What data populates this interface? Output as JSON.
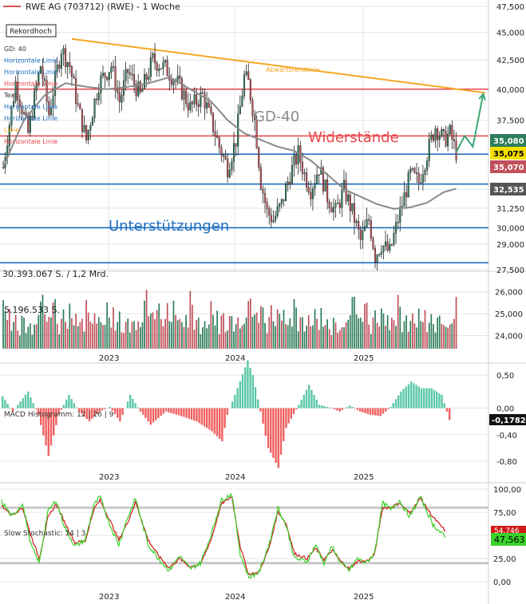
{
  "header": {
    "title": "RWE AG (703712) (RWE) - 1 Woche",
    "record_badge": "Rekordhoch",
    "legend_line_color": "#e05050"
  },
  "colors": {
    "bull": "#2e7d5b",
    "bear": "#c0505a",
    "trend": "#f5a623",
    "support": "#1f6fc0",
    "resistance": "#e8474c",
    "ma": "#8a8a8a",
    "forecast": "#3aa872",
    "macd_pos": "#5cc8a8",
    "macd_neg": "#f06060",
    "stoch_fast": "#3bd12b",
    "stoch_slow": "#d11a1a",
    "grid": "#e5e5e5"
  },
  "overlay_list": [
    {
      "text": "GD: 40",
      "color": "#333333"
    },
    {
      "text": "Horizontale Linie",
      "color": "#1f6fc0"
    },
    {
      "text": "Horizontale Linie",
      "color": "#1f6fc0"
    },
    {
      "text": "Horizontale Linie",
      "color": "#e8474c"
    },
    {
      "text": "Text",
      "color": "#333333"
    },
    {
      "text": "Horizontale Linie",
      "color": "#1f6fc0"
    },
    {
      "text": "Horizontale Linie",
      "color": "#1f6fc0"
    },
    {
      "text": "Linie",
      "color": "#f5a623"
    },
    {
      "text": "Horizontale Linie",
      "color": "#e8474c"
    }
  ],
  "annotations": {
    "trend_label": "Abwärtsrendlinie",
    "ma_label": "GD-40",
    "resistance_label": "Widerstände",
    "support_label": "Unterstützungen"
  },
  "price_panel": {
    "yticks": [
      "47,500",
      "45,000",
      "42,500",
      "40,000",
      "37,500",
      "35,000",
      "32,500",
      "31,250",
      "30,000",
      "29,000",
      "27,500"
    ],
    "ytick_values": [
      47.5,
      45,
      42.5,
      40,
      37.5,
      35,
      32.5,
      31.25,
      30,
      29,
      27.5
    ],
    "price_tags": [
      {
        "label": "35,080",
        "value": 35.08,
        "bg": "#2e7d5b",
        "fg": "#ffffff"
      },
      {
        "label": "35,075",
        "value": 35.075,
        "bg": "#f5e000",
        "fg": "#000000"
      },
      {
        "label": "35,070",
        "value": 35.07,
        "bg": "#c0505a",
        "fg": "#ffffff"
      },
      {
        "label": "32,535",
        "value": 32.535,
        "bg": "#555555",
        "fg": "#ffffff"
      }
    ]
  },
  "volume_panel": {
    "label_total": "30.393.067 S. / 1,2 Mrd.",
    "label_last": "5.196.533 S.",
    "yticks": [
      "26,000",
      "25,000",
      "24,000"
    ]
  },
  "macd_panel": {
    "label": "MACD Histogramm: 12 | 26 | 9",
    "yticks": [
      "0,50",
      "0,00",
      "-0,40",
      "-0,80"
    ],
    "ytick_values": [
      0.5,
      0,
      -0.4,
      -0.8
    ],
    "value_tag": "-0,17827"
  },
  "stoch_panel": {
    "label": "Slow Stochastic: 14 | 3",
    "yticks": [
      "100,00",
      "75,00",
      "50,00",
      "25,00",
      "0,00"
    ],
    "ytick_values": [
      100,
      75,
      50,
      25,
      0
    ],
    "tag_top": "54,746",
    "tag_bottom": "47,563"
  },
  "x_axis": {
    "labels": [
      "2023",
      "2024",
      "2025"
    ]
  },
  "chart_data": [
    {
      "type": "candlestick",
      "title": "RWE AG (703712) (RWE) - 1 Woche",
      "y_scale": "log",
      "ylim": [
        27.5,
        47.5
      ],
      "x_labels": [
        "2023",
        "2024",
        "2025"
      ],
      "close_path": [
        [
          0,
          34.0
        ],
        [
          6,
          40.5
        ],
        [
          12,
          36.5
        ],
        [
          18,
          42.0
        ],
        [
          22,
          38.0
        ],
        [
          28,
          43.5
        ],
        [
          32,
          42.0
        ],
        [
          36,
          38.5
        ],
        [
          40,
          36.0
        ],
        [
          46,
          40.5
        ],
        [
          52,
          42.0
        ],
        [
          56,
          39.0
        ],
        [
          60,
          41.5
        ],
        [
          66,
          39.5
        ],
        [
          72,
          42.5
        ],
        [
          78,
          41.8
        ],
        [
          84,
          40.5
        ],
        [
          90,
          38.5
        ],
        [
          96,
          39.5
        ],
        [
          100,
          37.5
        ],
        [
          104,
          35.5
        ],
        [
          108,
          34.0
        ],
        [
          112,
          36.0
        ],
        [
          116,
          41.0
        ],
        [
          118,
          40.5
        ],
        [
          121,
          37.5
        ],
        [
          124,
          33.0
        ],
        [
          127,
          31.0
        ],
        [
          130,
          30.5
        ],
        [
          134,
          31.5
        ],
        [
          138,
          33.5
        ],
        [
          142,
          35.0
        ],
        [
          145,
          33.5
        ],
        [
          148,
          32.5
        ],
        [
          152,
          34.0
        ],
        [
          156,
          32.0
        ],
        [
          160,
          31.0
        ],
        [
          164,
          32.5
        ],
        [
          168,
          31.0
        ],
        [
          172,
          29.2
        ],
        [
          176,
          30.5
        ],
        [
          179,
          28.3
        ],
        [
          182,
          29.0
        ],
        [
          186,
          28.5
        ],
        [
          190,
          30.5
        ],
        [
          193,
          32.0
        ],
        [
          196,
          33.5
        ],
        [
          200,
          33.0
        ],
        [
          204,
          35.0
        ],
        [
          208,
          37.0
        ],
        [
          212,
          36.0
        ],
        [
          215,
          36.5
        ],
        [
          218,
          35.08
        ]
      ],
      "ma40_path": [
        [
          0,
          34.0
        ],
        [
          10,
          37.5
        ],
        [
          20,
          39.5
        ],
        [
          30,
          40.5
        ],
        [
          40,
          40.2
        ],
        [
          50,
          40.0
        ],
        [
          60,
          40.2
        ],
        [
          70,
          40.5
        ],
        [
          80,
          41.0
        ],
        [
          90,
          40.0
        ],
        [
          100,
          39.0
        ],
        [
          108,
          37.5
        ],
        [
          116,
          36.5
        ],
        [
          124,
          36.0
        ],
        [
          132,
          35.5
        ],
        [
          140,
          35.2
        ],
        [
          148,
          34.5
        ],
        [
          156,
          33.5
        ],
        [
          164,
          32.5
        ],
        [
          172,
          32.0
        ],
        [
          180,
          31.5
        ],
        [
          188,
          31.2
        ],
        [
          196,
          31.3
        ],
        [
          204,
          31.6
        ],
        [
          212,
          32.3
        ],
        [
          218,
          32.535
        ]
      ],
      "forecast_path": [
        [
          218,
          35.08
        ],
        [
          222,
          36.3
        ],
        [
          226,
          35.5
        ],
        [
          231,
          39.6
        ]
      ],
      "horizontal_lines": [
        {
          "type": "resistance",
          "value": 40.0
        },
        {
          "type": "resistance",
          "value": 36.3
        },
        {
          "type": "support",
          "value": 34.95
        },
        {
          "type": "support",
          "value": 32.85
        },
        {
          "type": "support",
          "value": 30.0
        },
        {
          "type": "support",
          "value": 27.9
        }
      ],
      "trendline": [
        [
          33,
          44.4
        ],
        [
          232,
          39.7
        ]
      ]
    },
    {
      "type": "bar",
      "title": "Volumen",
      "values_note": "weekly volume bars",
      "ylim": [
        23400,
        26500
      ],
      "volume_values": [
        25400,
        24900,
        24500,
        25100,
        24300,
        24700,
        24900,
        24400,
        24100,
        24800,
        24700,
        24300,
        24400,
        24600,
        24200,
        24600,
        24500,
        24800,
        25600,
        25900,
        25100,
        24800,
        24900,
        24600,
        25300,
        25500,
        24700,
        24300,
        25000,
        25300,
        24500,
        24400,
        25400,
        24800,
        24700,
        25000,
        24400,
        24600,
        24900,
        24300,
        25800,
        25200,
        24400,
        24700,
        24900,
        24300,
        24600,
        24800,
        24400,
        24300
      ]
    },
    {
      "type": "bar",
      "title": "MACD Histogramm: 12 | 26 | 9",
      "ylim": [
        -0.92,
        0.62
      ],
      "knots": [
        [
          0,
          0.18
        ],
        [
          4,
          -0.05
        ],
        [
          10,
          0.25
        ],
        [
          14,
          -0.1
        ],
        [
          18,
          -0.72
        ],
        [
          22,
          -0.1
        ],
        [
          26,
          0.2
        ],
        [
          30,
          -0.05
        ],
        [
          34,
          -0.2
        ],
        [
          38,
          -0.05
        ],
        [
          42,
          0.02
        ],
        [
          46,
          -0.2
        ],
        [
          50,
          0.2
        ],
        [
          54,
          -0.05
        ],
        [
          58,
          -0.25
        ],
        [
          64,
          -0.05
        ],
        [
          70,
          -0.12
        ],
        [
          76,
          -0.2
        ],
        [
          82,
          -0.35
        ],
        [
          86,
          -0.5
        ],
        [
          88,
          -0.1
        ],
        [
          92,
          0.3
        ],
        [
          96,
          0.72
        ],
        [
          98,
          0.5
        ],
        [
          101,
          -0.05
        ],
        [
          104,
          -0.6
        ],
        [
          108,
          -0.9
        ],
        [
          111,
          -0.3
        ],
        [
          116,
          0.05
        ],
        [
          120,
          0.35
        ],
        [
          124,
          0.05
        ],
        [
          128,
          0.01
        ],
        [
          132,
          -0.05
        ],
        [
          136,
          0.04
        ],
        [
          140,
          -0.05
        ],
        [
          144,
          -0.1
        ],
        [
          148,
          -0.12
        ],
        [
          152,
          0.02
        ],
        [
          156,
          0.25
        ],
        [
          160,
          0.4
        ],
        [
          164,
          0.3
        ],
        [
          168,
          0.3
        ],
        [
          172,
          0.2
        ],
        [
          175,
          -0.17827
        ]
      ]
    },
    {
      "type": "line",
      "title": "Slow Stochastic: 14 | 3",
      "ylim": [
        0,
        100
      ],
      "ref_lines": [
        80,
        20
      ],
      "fast_knots": [
        [
          0,
          87
        ],
        [
          5,
          70
        ],
        [
          10,
          85
        ],
        [
          14,
          40
        ],
        [
          18,
          20
        ],
        [
          22,
          75
        ],
        [
          26,
          88
        ],
        [
          30,
          60
        ],
        [
          35,
          38
        ],
        [
          40,
          45
        ],
        [
          44,
          82
        ],
        [
          47,
          92
        ],
        [
          52,
          60
        ],
        [
          56,
          40
        ],
        [
          60,
          68
        ],
        [
          64,
          90
        ],
        [
          70,
          40
        ],
        [
          75,
          25
        ],
        [
          80,
          12
        ],
        [
          85,
          28
        ],
        [
          90,
          14
        ],
        [
          95,
          20
        ],
        [
          100,
          50
        ],
        [
          105,
          88
        ],
        [
          110,
          95
        ],
        [
          114,
          30
        ],
        [
          118,
          5
        ],
        [
          123,
          10
        ],
        [
          128,
          42
        ],
        [
          132,
          80
        ],
        [
          136,
          60
        ],
        [
          140,
          25
        ],
        [
          146,
          22
        ],
        [
          150,
          40
        ],
        [
          154,
          20
        ],
        [
          158,
          38
        ],
        [
          162,
          20
        ],
        [
          166,
          12
        ],
        [
          170,
          25
        ],
        [
          174,
          20
        ],
        [
          178,
          30
        ],
        [
          182,
          85
        ],
        [
          186,
          78
        ],
        [
          190,
          88
        ],
        [
          195,
          70
        ],
        [
          200,
          92
        ],
        [
          206,
          62
        ],
        [
          212,
          47.563
        ]
      ],
      "slow_knots": [
        [
          0,
          82
        ],
        [
          5,
          72
        ],
        [
          10,
          80
        ],
        [
          14,
          50
        ],
        [
          18,
          25
        ],
        [
          22,
          68
        ],
        [
          26,
          84
        ],
        [
          30,
          65
        ],
        [
          35,
          42
        ],
        [
          40,
          44
        ],
        [
          44,
          78
        ],
        [
          47,
          88
        ],
        [
          52,
          65
        ],
        [
          56,
          45
        ],
        [
          60,
          63
        ],
        [
          64,
          86
        ],
        [
          70,
          45
        ],
        [
          75,
          28
        ],
        [
          80,
          15
        ],
        [
          85,
          25
        ],
        [
          90,
          16
        ],
        [
          95,
          19
        ],
        [
          100,
          45
        ],
        [
          105,
          84
        ],
        [
          110,
          92
        ],
        [
          114,
          38
        ],
        [
          118,
          8
        ],
        [
          123,
          10
        ],
        [
          128,
          38
        ],
        [
          132,
          76
        ],
        [
          136,
          62
        ],
        [
          140,
          30
        ],
        [
          146,
          25
        ],
        [
          150,
          36
        ],
        [
          154,
          24
        ],
        [
          158,
          34
        ],
        [
          162,
          22
        ],
        [
          166,
          14
        ],
        [
          170,
          22
        ],
        [
          174,
          22
        ],
        [
          178,
          28
        ],
        [
          182,
          80
        ],
        [
          186,
          80
        ],
        [
          190,
          85
        ],
        [
          195,
          74
        ],
        [
          200,
          90
        ],
        [
          206,
          70
        ],
        [
          212,
          54.746
        ]
      ]
    }
  ]
}
